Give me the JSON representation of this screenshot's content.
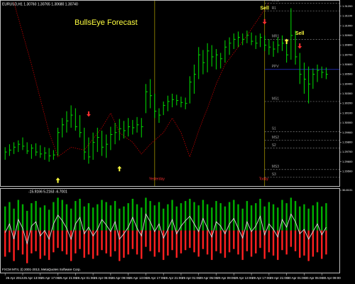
{
  "chart_data": [
    {
      "type": "ohlc",
      "subtitle": "EURUSD,H1 1.30760 1.30765 1.30680 1.30740",
      "title": "BullsEye Forecast",
      "color": "#00e000",
      "high": [
        1.2975,
        1.2978,
        1.298,
        1.2982,
        1.2985,
        1.298,
        1.2978,
        1.2979,
        1.2977,
        1.2975,
        1.2974,
        1.2972,
        1.2995,
        1.3005,
        1.3012,
        1.3018,
        1.3015,
        1.3008,
        1.2995,
        1.2985,
        1.299,
        1.2995,
        1.2992,
        1.2988,
        1.2996,
        1.3,
        1.3004,
        1.3002,
        1.3005,
        1.3003,
        1.3006,
        1.3005,
        1.304,
        1.3045,
        1.303,
        1.3015,
        1.3022,
        1.3028,
        1.303,
        1.3029,
        1.3027,
        1.3026,
        1.3048,
        1.306,
        1.3078,
        1.3075,
        1.3082,
        1.308,
        1.3076,
        1.3072,
        1.3085,
        1.3088,
        1.3092,
        1.3094,
        1.3092,
        1.3095,
        1.3093,
        1.309,
        1.3092,
        1.309,
        1.3086,
        1.3084,
        1.3088,
        1.309,
        1.3085,
        1.3118,
        1.3095,
        1.3072,
        1.3062,
        1.3058,
        1.3056,
        1.306,
        1.3058,
        1.3057
      ],
      "low": [
        1.2962,
        1.2966,
        1.2968,
        1.297,
        1.2972,
        1.2968,
        1.2963,
        1.2966,
        1.2964,
        1.2962,
        1.296,
        1.2962,
        1.2966,
        1.2985,
        1.299,
        1.2995,
        1.2992,
        1.2985,
        1.2962,
        1.2958,
        1.2962,
        1.297,
        1.2966,
        1.2964,
        1.2972,
        1.2978,
        1.2982,
        1.2984,
        1.2986,
        1.2988,
        1.299,
        1.2985,
        1.301,
        1.3015,
        1.3005,
        1.3,
        1.3008,
        1.3012,
        1.3016,
        1.3018,
        1.3016,
        1.3014,
        1.302,
        1.303,
        1.3045,
        1.305,
        1.3052,
        1.3058,
        1.3055,
        1.3056,
        1.3062,
        1.307,
        1.3076,
        1.3078,
        1.308,
        1.3082,
        1.308,
        1.3076,
        1.3078,
        1.3074,
        1.307,
        1.3068,
        1.3072,
        1.3074,
        1.3062,
        1.3065,
        1.306,
        1.304,
        1.303,
        1.302,
        1.3035,
        1.3042,
        1.3046,
        1.3045
      ],
      "close": [
        1.297,
        1.2972,
        1.2975,
        1.2978,
        1.2976,
        1.2971,
        1.2974,
        1.297,
        1.2968,
        1.2969,
        1.2966,
        1.2967,
        1.299,
        1.2998,
        1.3002,
        1.3008,
        1.2996,
        1.299,
        1.297,
        1.2965,
        1.298,
        1.2985,
        1.2975,
        1.2978,
        1.2988,
        1.299,
        1.2994,
        1.2992,
        1.2996,
        1.2995,
        1.2998,
        1.2996,
        1.3032,
        1.3028,
        1.3012,
        1.3008,
        1.3018,
        1.3022,
        1.3024,
        1.3023,
        1.3021,
        1.302,
        1.3042,
        1.305,
        1.307,
        1.3062,
        1.3074,
        1.3068,
        1.307,
        1.3066,
        1.3078,
        1.3082,
        1.3086,
        1.3088,
        1.3086,
        1.309,
        1.3084,
        1.3082,
        1.3088,
        1.308,
        1.3078,
        1.3076,
        1.308,
        1.3082,
        1.307,
        1.309,
        1.3068,
        1.305,
        1.3045,
        1.304,
        1.305,
        1.3054,
        1.3052,
        1.305
      ],
      "overlay": {
        "color": "#c00000",
        "x": [
          2,
          6,
          10,
          12,
          15,
          18,
          22,
          24,
          26,
          29,
          31,
          33,
          36,
          38,
          40,
          42,
          44,
          46,
          48,
          50,
          52,
          55,
          58,
          60
        ],
        "y": [
          1.3124,
          1.306,
          1.299,
          1.2965,
          1.2975,
          1.2972,
          1.2995,
          1.301,
          1.299,
          1.298,
          1.2968,
          1.2978,
          1.299,
          1.3005,
          1.299,
          1.2965,
          1.2992,
          1.3015,
          1.304,
          1.306,
          1.3072,
          1.309,
          1.311,
          1.3124
        ]
      },
      "buy_arrows": {
        "color": "#ffff40",
        "x": [
          12,
          26,
          64
        ],
        "y": [
          1.294,
          1.2952,
          1.3083
        ]
      },
      "sell_arrows": {
        "color": "#ff3030",
        "x": [
          19,
          59,
          67
        ],
        "y": [
          1.301,
          1.3105,
          1.308
        ]
      },
      "annotations": [
        {
          "text": "Sell",
          "x": 59,
          "y": 1.3118
        },
        {
          "text": "Sell",
          "x": 67,
          "y": 1.3092
        }
      ],
      "levels": [
        {
          "label": "MR2",
          "value": 1.3123,
          "color": "#808080"
        },
        {
          "label": "R1",
          "value": 1.3115,
          "color": "#808080"
        },
        {
          "label": "MR1",
          "value": 1.3086,
          "color": "#808080"
        },
        {
          "label": "PPV",
          "value": 1.3055,
          "color": "#3040ff"
        },
        {
          "label": "MS1",
          "value": 1.3022,
          "color": "#808080"
        },
        {
          "label": "S1",
          "value": 1.2991,
          "color": "#808080"
        },
        {
          "label": "MS2",
          "value": 1.2982,
          "color": "#808080"
        },
        {
          "label": "S2",
          "value": 1.2974,
          "color": "#808080"
        },
        {
          "label": "MS3",
          "value": 1.2952,
          "color": "#808080"
        },
        {
          "label": "S3",
          "value": 1.2944,
          "color": "#808080"
        }
      ],
      "vlines": [
        {
          "x": 34,
          "label": "Yesterday"
        },
        {
          "x": 59,
          "label": "Today"
        }
      ],
      "vline_color": "#a09000",
      "xlim": [
        -1,
        76
      ],
      "ylim": [
        1.2935,
        1.3125
      ],
      "xticks": [
        {
          "value": 0,
          "label": "25 Apr 2013"
        },
        {
          "value": 4,
          "label": "25 Apr 13:00"
        },
        {
          "value": 8,
          "label": "25 Apr 17:00"
        },
        {
          "value": 12,
          "label": "25 Apr 21:00"
        },
        {
          "value": 16,
          "label": "26 Apr 01:00"
        },
        {
          "value": 20,
          "label": "26 Apr 05:00"
        },
        {
          "value": 24,
          "label": "26 Apr 09:00"
        },
        {
          "value": 28,
          "label": "26 Apr 13:00"
        },
        {
          "value": 32,
          "label": "26 Apr 17:00"
        },
        {
          "value": 36,
          "label": "26 Apr 21:00"
        },
        {
          "value": 40,
          "label": "29 Apr 01:00"
        },
        {
          "value": 44,
          "label": "29 Apr 05:00"
        },
        {
          "value": 48,
          "label": "29 Apr 09:00"
        },
        {
          "value": 52,
          "label": "29 Apr 13:00"
        },
        {
          "value": 56,
          "label": "29 Apr 17:00"
        },
        {
          "value": 60,
          "label": "29 Apr 21:00"
        },
        {
          "value": 64,
          "label": "30 Apr 01:00"
        },
        {
          "value": 68,
          "label": "30 Apr 05:00"
        },
        {
          "value": 72,
          "label": "30 Apr 09:00"
        }
      ],
      "yticks": [
        {
          "value": 1.295,
          "label": "1.29500"
        },
        {
          "value": 1.296,
          "label": "1.29600"
        },
        {
          "value": 1.297,
          "label": "1.29700"
        },
        {
          "value": 1.298,
          "label": "1.29800"
        },
        {
          "value": 1.299,
          "label": "1.29900"
        },
        {
          "value": 1.3,
          "label": "1.30000"
        },
        {
          "value": 1.301,
          "label": "1.30100"
        },
        {
          "value": 1.302,
          "label": "1.30200"
        },
        {
          "value": 1.303,
          "label": "1.30300"
        },
        {
          "value": 1.304,
          "label": "1.30400"
        },
        {
          "value": 1.305,
          "label": "1.30500"
        },
        {
          "value": 1.306,
          "label": "1.30600"
        },
        {
          "value": 1.307,
          "label": "1.30700"
        },
        {
          "value": 1.308,
          "label": "1.30800"
        },
        {
          "value": 1.309,
          "label": "1.30900"
        },
        {
          "value": 1.31,
          "label": "1.31000"
        },
        {
          "value": 1.311,
          "label": "1.31100"
        },
        {
          "value": 1.312,
          "label": "1.31200"
        }
      ]
    },
    {
      "type": "bar",
      "subtitle": "-15.9166 5.2163 -6.7001",
      "series": [
        {
          "color": "#00b000",
          "values": [
            22,
            26,
            20,
            28,
            24,
            18,
            25,
            27,
            21,
            23,
            19,
            26,
            30,
            28,
            24,
            20,
            27,
            29,
            22,
            25,
            21,
            24,
            28,
            26,
            23,
            27,
            20,
            22,
            25,
            29,
            24,
            21,
            30,
            27,
            23,
            26,
            20,
            24,
            28,
            22,
            25,
            27,
            29,
            26,
            23,
            28,
            24,
            21,
            27,
            25,
            22,
            26,
            28,
            24,
            20,
            27,
            23,
            25,
            29,
            22,
            26,
            24,
            21,
            28,
            25,
            30,
            27,
            22,
            24,
            20,
            23,
            26,
            22,
            25
          ]
        },
        {
          "color": "#ff2020",
          "values": [
            -24,
            -20,
            -28,
            -18,
            -22,
            -30,
            -21,
            -19,
            -26,
            -23,
            -27,
            -20,
            -16,
            -19,
            -22,
            -28,
            -21,
            -17,
            -25,
            -22,
            -26,
            -23,
            -18,
            -21,
            -24,
            -19,
            -28,
            -25,
            -22,
            -17,
            -22,
            -26,
            -15,
            -19,
            -24,
            -20,
            -27,
            -23,
            -18,
            -25,
            -21,
            -18,
            -16,
            -20,
            -24,
            -17,
            -22,
            -27,
            -19,
            -21,
            -25,
            -20,
            -17,
            -22,
            -27,
            -19,
            -24,
            -21,
            -16,
            -26,
            -20,
            -23,
            -27,
            -18,
            -22,
            -15,
            -19,
            -25,
            -23,
            -28,
            -24,
            -20,
            -26,
            -22
          ]
        }
      ],
      "line": {
        "color": "#d8d8d8",
        "values": [
          -2,
          6,
          -8,
          10,
          2,
          -12,
          4,
          8,
          -5,
          0,
          -8,
          6,
          14,
          9,
          2,
          -8,
          6,
          12,
          -3,
          3,
          -5,
          1,
          10,
          5,
          -1,
          8,
          -8,
          -3,
          3,
          12,
          2,
          -5,
          15,
          8,
          -1,
          6,
          -7,
          1,
          10,
          -3,
          4,
          9,
          13,
          6,
          -1,
          11,
          2,
          -6,
          8,
          4,
          -3,
          6,
          11,
          2,
          -7,
          8,
          -1,
          4,
          13,
          -4,
          6,
          1,
          -6,
          10,
          3,
          15,
          8,
          -3,
          1,
          -8,
          -1,
          6,
          -4,
          3
        ]
      },
      "ylim": [
        -38,
        36.8131
      ],
      "yticks": [
        36.8131
      ]
    }
  ],
  "footer": "FXCM MT4, (t) 2001-2013, MetaQuotes Software Corp."
}
